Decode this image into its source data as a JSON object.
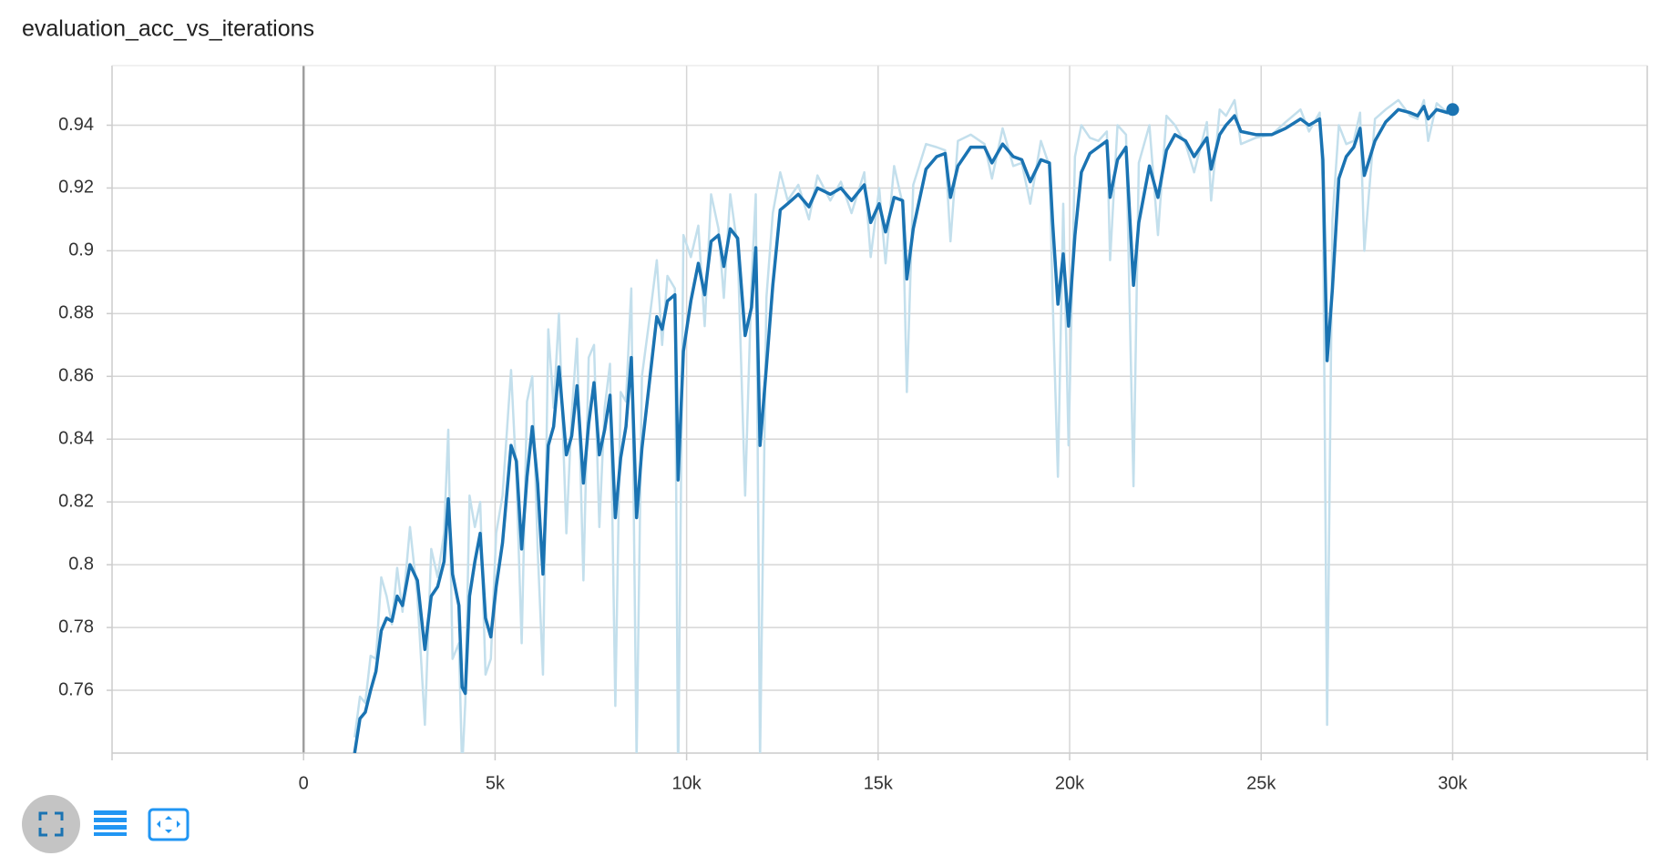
{
  "chart_data": {
    "type": "line",
    "title": "evaluation_acc_vs_iterations",
    "x": [
      1333,
      1472,
      1611,
      1750,
      1889,
      2028,
      2167,
      2306,
      2444,
      2583,
      2778,
      2972,
      3167,
      3333,
      3500,
      3667,
      3778,
      3889,
      4056,
      4139,
      4222,
      4333,
      4472,
      4611,
      4750,
      4889,
      5028,
      5194,
      5417,
      5556,
      5694,
      5833,
      5972,
      6111,
      6250,
      6389,
      6528,
      6667,
      6861,
      7000,
      7139,
      7306,
      7444,
      7583,
      7722,
      7861,
      8000,
      8139,
      8278,
      8417,
      8556,
      8694,
      8833,
      9028,
      9222,
      9361,
      9500,
      9694,
      9778,
      9917,
      10111,
      10306,
      10472,
      10639,
      10833,
      10972,
      11139,
      11333,
      11528,
      11694,
      11806,
      11917,
      12083,
      12250,
      12444,
      12639,
      12917,
      13194,
      13417,
      13750,
      14028,
      14306,
      14639,
      14806,
      15028,
      15194,
      15417,
      15639,
      15750,
      15917,
      16250,
      16528,
      16750,
      16889,
      17083,
      17417,
      17778,
      17972,
      18250,
      18528,
      18750,
      18972,
      19250,
      19472,
      19556,
      19694,
      19833,
      19972,
      20139,
      20306,
      20528,
      20750,
      20972,
      21056,
      21250,
      21472,
      21667,
      21806,
      22083,
      22306,
      22528,
      22750,
      23028,
      23250,
      23583,
      23694,
      23917,
      24083,
      24306,
      24472,
      24861,
      25278,
      25639,
      26028,
      26250,
      26528,
      26611,
      26722,
      26861,
      27028,
      27222,
      27417,
      27583,
      27694,
      27972,
      28250,
      28583,
      28889,
      29083,
      29250,
      29361,
      29583,
      29861,
      30000
    ],
    "series": [
      {
        "color": "#c3dfec",
        "values": [
          0.745,
          0.758,
          0.756,
          0.771,
          0.77,
          0.796,
          0.79,
          0.781,
          0.799,
          0.785,
          0.812,
          0.79,
          0.749,
          0.805,
          0.796,
          0.81,
          0.843,
          0.77,
          0.775,
          0.735,
          0.756,
          0.822,
          0.812,
          0.82,
          0.765,
          0.77,
          0.81,
          0.822,
          0.862,
          0.828,
          0.775,
          0.852,
          0.86,
          0.805,
          0.765,
          0.875,
          0.85,
          0.88,
          0.81,
          0.848,
          0.872,
          0.795,
          0.866,
          0.87,
          0.812,
          0.85,
          0.864,
          0.755,
          0.855,
          0.852,
          0.888,
          0.738,
          0.86,
          0.878,
          0.897,
          0.87,
          0.892,
          0.888,
          0.73,
          0.905,
          0.898,
          0.908,
          0.876,
          0.918,
          0.907,
          0.885,
          0.918,
          0.901,
          0.822,
          0.89,
          0.918,
          0.738,
          0.885,
          0.912,
          0.925,
          0.916,
          0.921,
          0.91,
          0.924,
          0.916,
          0.922,
          0.912,
          0.925,
          0.898,
          0.92,
          0.896,
          0.927,
          0.915,
          0.855,
          0.921,
          0.934,
          0.933,
          0.932,
          0.903,
          0.935,
          0.937,
          0.934,
          0.923,
          0.939,
          0.927,
          0.928,
          0.915,
          0.935,
          0.927,
          0.885,
          0.828,
          0.915,
          0.838,
          0.93,
          0.94,
          0.936,
          0.935,
          0.938,
          0.897,
          0.94,
          0.937,
          0.825,
          0.928,
          0.94,
          0.905,
          0.943,
          0.94,
          0.934,
          0.925,
          0.941,
          0.916,
          0.945,
          0.943,
          0.948,
          0.934,
          0.936,
          0.937,
          0.941,
          0.945,
          0.938,
          0.944,
          0.92,
          0.749,
          0.91,
          0.94,
          0.934,
          0.935,
          0.944,
          0.9,
          0.942,
          0.945,
          0.948,
          0.943,
          0.942,
          0.948,
          0.935,
          0.947,
          0.944,
          0.946
        ]
      },
      {
        "color": "#1a73b2",
        "values": [
          0.74,
          0.751,
          0.753,
          0.76,
          0.766,
          0.779,
          0.783,
          0.782,
          0.79,
          0.787,
          0.8,
          0.795,
          0.773,
          0.79,
          0.793,
          0.801,
          0.821,
          0.797,
          0.787,
          0.761,
          0.759,
          0.79,
          0.801,
          0.81,
          0.783,
          0.777,
          0.793,
          0.807,
          0.838,
          0.833,
          0.805,
          0.828,
          0.844,
          0.826,
          0.797,
          0.838,
          0.844,
          0.863,
          0.835,
          0.841,
          0.857,
          0.826,
          0.845,
          0.858,
          0.835,
          0.843,
          0.854,
          0.815,
          0.834,
          0.844,
          0.866,
          0.815,
          0.837,
          0.858,
          0.879,
          0.875,
          0.884,
          0.886,
          0.827,
          0.868,
          0.884,
          0.896,
          0.886,
          0.903,
          0.905,
          0.895,
          0.907,
          0.904,
          0.873,
          0.882,
          0.901,
          0.838,
          0.863,
          0.889,
          0.913,
          0.915,
          0.918,
          0.914,
          0.92,
          0.918,
          0.92,
          0.916,
          0.921,
          0.909,
          0.915,
          0.906,
          0.917,
          0.916,
          0.891,
          0.907,
          0.926,
          0.93,
          0.931,
          0.917,
          0.927,
          0.933,
          0.933,
          0.928,
          0.934,
          0.93,
          0.929,
          0.922,
          0.929,
          0.928,
          0.909,
          0.883,
          0.899,
          0.876,
          0.905,
          0.925,
          0.931,
          0.933,
          0.935,
          0.917,
          0.929,
          0.933,
          0.889,
          0.909,
          0.927,
          0.917,
          0.932,
          0.937,
          0.935,
          0.93,
          0.936,
          0.926,
          0.937,
          0.94,
          0.943,
          0.938,
          0.937,
          0.937,
          0.939,
          0.942,
          0.94,
          0.942,
          0.929,
          0.865,
          0.888,
          0.923,
          0.93,
          0.933,
          0.939,
          0.924,
          0.935,
          0.941,
          0.945,
          0.944,
          0.943,
          0.946,
          0.942,
          0.945,
          0.944,
          0.945
        ]
      }
    ],
    "xlim": [
      -5000,
      35080
    ],
    "ylim": [
      0.74,
      0.959
    ],
    "xticks": [
      {
        "value": 0,
        "label": "0"
      },
      {
        "value": 5000,
        "label": "5k"
      },
      {
        "value": 10000,
        "label": "10k"
      },
      {
        "value": 15000,
        "label": "15k"
      },
      {
        "value": 20000,
        "label": "20k"
      },
      {
        "value": 25000,
        "label": "25k"
      },
      {
        "value": 30000,
        "label": "30k"
      }
    ],
    "yticks": [
      0.76,
      0.78,
      0.8,
      0.82,
      0.84,
      0.86,
      0.88,
      0.9,
      0.92,
      0.94
    ],
    "grid": true
  }
}
